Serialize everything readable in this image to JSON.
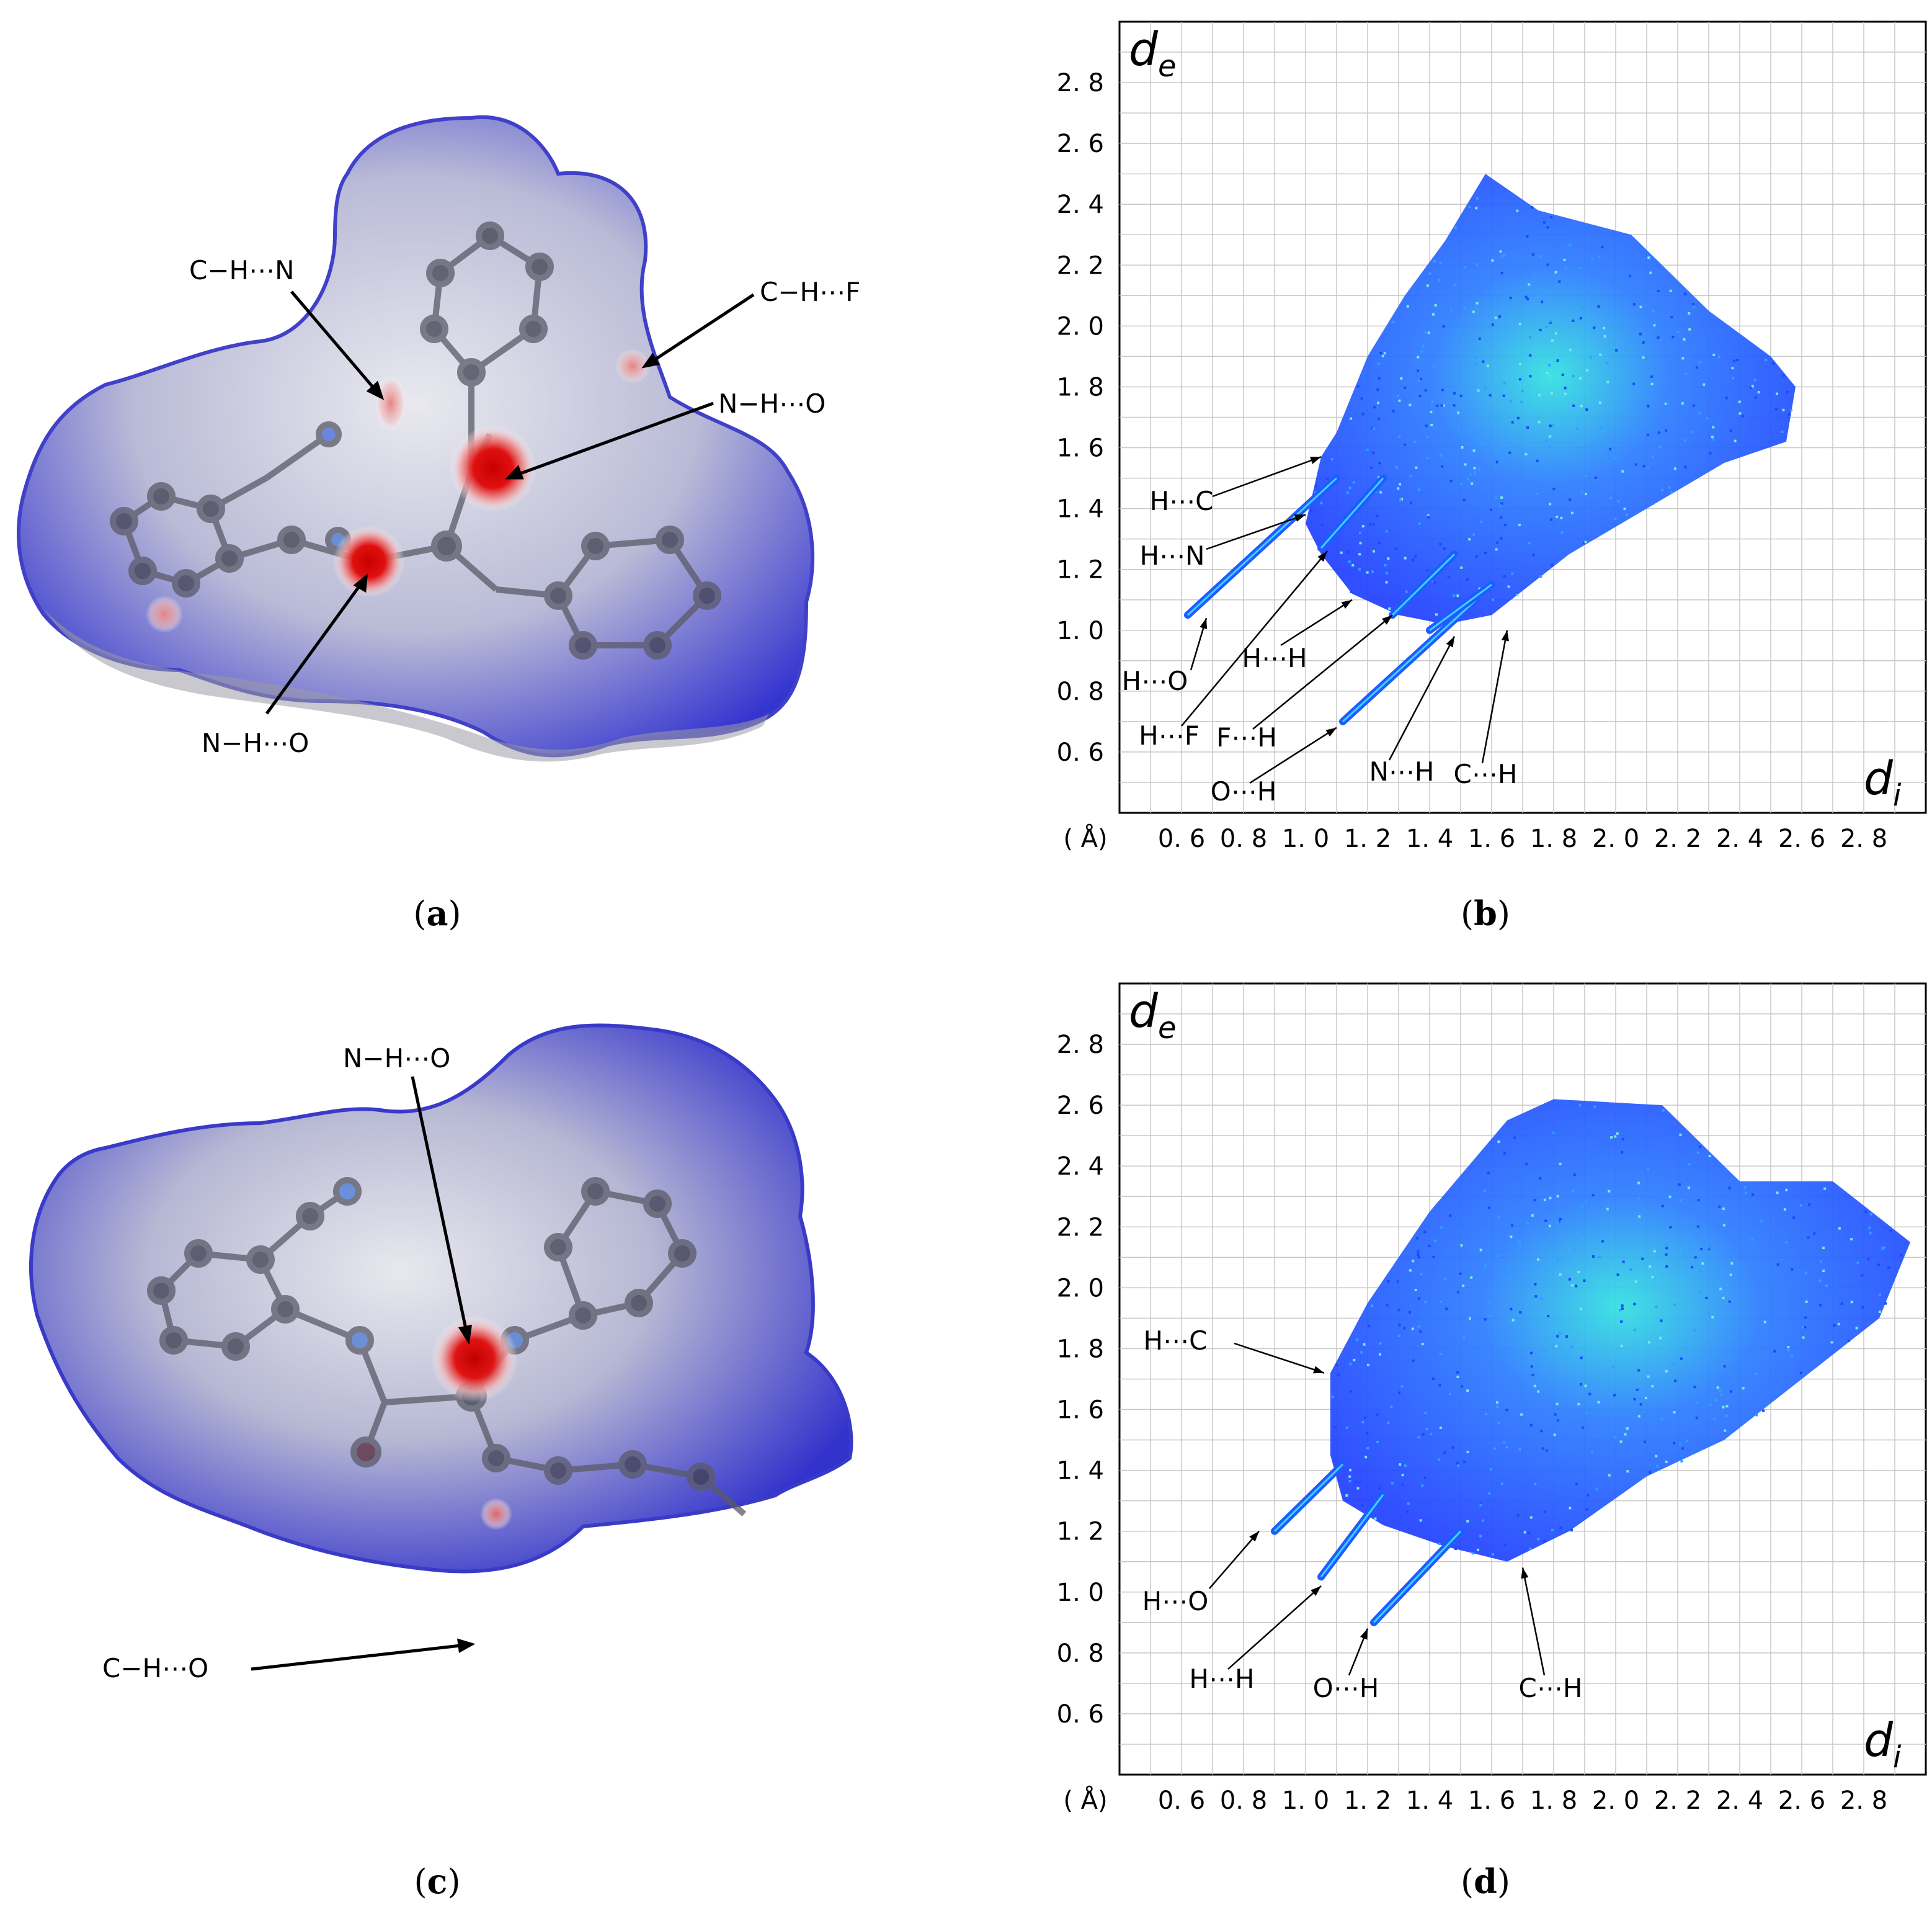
{
  "figure": {
    "panels": [
      {
        "id": "a",
        "caption_letter": "a",
        "kind": "hirshfeld-surface",
        "annotations": [
          "C−H⋯N",
          "C−H⋯F",
          "N−H⋯O",
          "N−H⋯O"
        ]
      },
      {
        "id": "b",
        "caption_letter": "b",
        "kind": "fingerprint-plot",
        "annotations": [
          "H⋯C",
          "H⋯N",
          "H⋯O",
          "H⋯H",
          "H⋯F",
          "F⋯H",
          "O⋯H",
          "N⋯H",
          "C⋯H"
        ]
      },
      {
        "id": "c",
        "caption_letter": "c",
        "kind": "hirshfeld-surface",
        "annotations": [
          "N−H⋯O",
          "C−H⋯O"
        ]
      },
      {
        "id": "d",
        "caption_letter": "d",
        "kind": "fingerprint-plot",
        "annotations": [
          "H⋯C",
          "H⋯O",
          "H⋯H",
          "O⋯H",
          "C⋯H"
        ]
      }
    ],
    "colors": {
      "surface_blue": "#3a3ad8",
      "surface_white": "#ecedf3",
      "contact_red": "#d90000",
      "points_blue": "#1f3fff",
      "points_cyan": "#30e0e0",
      "grid": "#c8c8c8"
    }
  },
  "chart_data": [
    {
      "type": "scatter",
      "panel": "b",
      "xlabel": "d_i",
      "ylabel": "d_e",
      "unit_label": "( Å)",
      "xlim": [
        0.4,
        3.0
      ],
      "ylim": [
        0.4,
        3.0
      ],
      "x_ticks": [
        "0. 6",
        "0. 8",
        "1. 0",
        "1. 2",
        "1. 4",
        "1. 6",
        "1. 8",
        "2. 0",
        "2. 2",
        "2. 4",
        "2. 6",
        "2. 8"
      ],
      "y_ticks": [
        "0. 6",
        "0. 8",
        "1. 0",
        "1. 2",
        "1. 4",
        "1. 6",
        "1. 8",
        "2. 0",
        "2. 2",
        "2. 4",
        "2. 6",
        "2. 8"
      ],
      "tick_values": [
        0.6,
        0.8,
        1.0,
        1.2,
        1.4,
        1.6,
        1.8,
        2.0,
        2.2,
        2.4,
        2.6,
        2.8
      ],
      "grid": true,
      "region_outline": [
        [
          1.05,
          1.57
        ],
        [
          1.1,
          1.65
        ],
        [
          1.2,
          1.9
        ],
        [
          1.32,
          2.1
        ],
        [
          1.45,
          2.28
        ],
        [
          1.58,
          2.5
        ],
        [
          1.75,
          2.38
        ],
        [
          2.05,
          2.3
        ],
        [
          2.3,
          2.05
        ],
        [
          2.5,
          1.9
        ],
        [
          2.58,
          1.8
        ],
        [
          2.55,
          1.62
        ],
        [
          2.35,
          1.55
        ],
        [
          2.1,
          1.4
        ],
        [
          1.85,
          1.25
        ],
        [
          1.6,
          1.05
        ],
        [
          1.45,
          1.02
        ],
        [
          1.3,
          1.05
        ],
        [
          1.15,
          1.12
        ],
        [
          1.05,
          1.25
        ],
        [
          1.0,
          1.35
        ]
      ],
      "spikes": [
        {
          "label": "H⋯O",
          "from": [
            0.62,
            1.05
          ],
          "to": [
            1.1,
            1.5
          ]
        },
        {
          "label": "O⋯H",
          "from": [
            1.12,
            0.7
          ],
          "to": [
            1.55,
            1.1
          ]
        },
        {
          "label": "H⋯F",
          "from": [
            1.05,
            1.27
          ],
          "to": [
            1.25,
            1.5
          ]
        },
        {
          "label": "F⋯H",
          "from": [
            1.28,
            1.05
          ],
          "to": [
            1.48,
            1.25
          ]
        },
        {
          "label": "N⋯H",
          "from": [
            1.4,
            1.0
          ],
          "to": [
            1.6,
            1.15
          ]
        }
      ],
      "annotations": [
        {
          "text": "H⋯C",
          "xy": [
            1.05,
            1.57
          ]
        },
        {
          "text": "H⋯N",
          "xy": [
            1.0,
            1.38
          ]
        },
        {
          "text": "H⋯O",
          "xy": [
            0.68,
            1.04
          ]
        },
        {
          "text": "H⋯H",
          "xy": [
            1.15,
            1.1
          ]
        },
        {
          "text": "H⋯F",
          "xy": [
            1.07,
            1.26
          ]
        },
        {
          "text": "F⋯H",
          "xy": [
            1.28,
            1.05
          ]
        },
        {
          "text": "O⋯H",
          "xy": [
            1.1,
            0.68
          ]
        },
        {
          "text": "N⋯H",
          "xy": [
            1.48,
            0.98
          ]
        },
        {
          "text": "C⋯H",
          "xy": [
            1.65,
            1.0
          ]
        }
      ]
    },
    {
      "type": "scatter",
      "panel": "d",
      "xlabel": "d_i",
      "ylabel": "d_e",
      "unit_label": "( Å)",
      "xlim": [
        0.4,
        3.0
      ],
      "ylim": [
        0.4,
        3.0
      ],
      "x_ticks": [
        "0. 6",
        "0. 8",
        "1. 0",
        "1. 2",
        "1. 4",
        "1. 6",
        "1. 8",
        "2. 0",
        "2. 2",
        "2. 4",
        "2. 6",
        "2. 8"
      ],
      "y_ticks": [
        "0. 6",
        "0. 8",
        "1. 0",
        "1. 2",
        "1. 4",
        "1. 6",
        "1. 8",
        "2. 0",
        "2. 2",
        "2. 4",
        "2. 6",
        "2. 8"
      ],
      "tick_values": [
        0.6,
        0.8,
        1.0,
        1.2,
        1.4,
        1.6,
        1.8,
        2.0,
        2.2,
        2.4,
        2.6,
        2.8
      ],
      "grid": true,
      "region_outline": [
        [
          1.08,
          1.72
        ],
        [
          1.2,
          1.95
        ],
        [
          1.4,
          2.25
        ],
        [
          1.65,
          2.55
        ],
        [
          1.8,
          2.62
        ],
        [
          2.15,
          2.6
        ],
        [
          2.4,
          2.35
        ],
        [
          2.7,
          2.35
        ],
        [
          2.95,
          2.15
        ],
        [
          2.85,
          1.9
        ],
        [
          2.6,
          1.7
        ],
        [
          2.35,
          1.5
        ],
        [
          2.1,
          1.38
        ],
        [
          1.85,
          1.2
        ],
        [
          1.65,
          1.1
        ],
        [
          1.45,
          1.15
        ],
        [
          1.25,
          1.22
        ],
        [
          1.12,
          1.3
        ],
        [
          1.08,
          1.45
        ]
      ],
      "spikes": [
        {
          "label": "H⋯O",
          "from": [
            0.9,
            1.2
          ],
          "to": [
            1.12,
            1.42
          ]
        },
        {
          "label": "H⋯H",
          "from": [
            1.05,
            1.05
          ],
          "to": [
            1.25,
            1.32
          ]
        },
        {
          "label": "O⋯H",
          "from": [
            1.22,
            0.9
          ],
          "to": [
            1.5,
            1.2
          ]
        }
      ],
      "annotations": [
        {
          "text": "H⋯C",
          "xy": [
            1.06,
            1.72
          ]
        },
        {
          "text": "H⋯O",
          "xy": [
            0.85,
            1.2
          ]
        },
        {
          "text": "H⋯H",
          "xy": [
            1.05,
            1.02
          ]
        },
        {
          "text": "O⋯H",
          "xy": [
            1.2,
            0.88
          ]
        },
        {
          "text": "C⋯H",
          "xy": [
            1.7,
            1.08
          ]
        }
      ]
    }
  ]
}
